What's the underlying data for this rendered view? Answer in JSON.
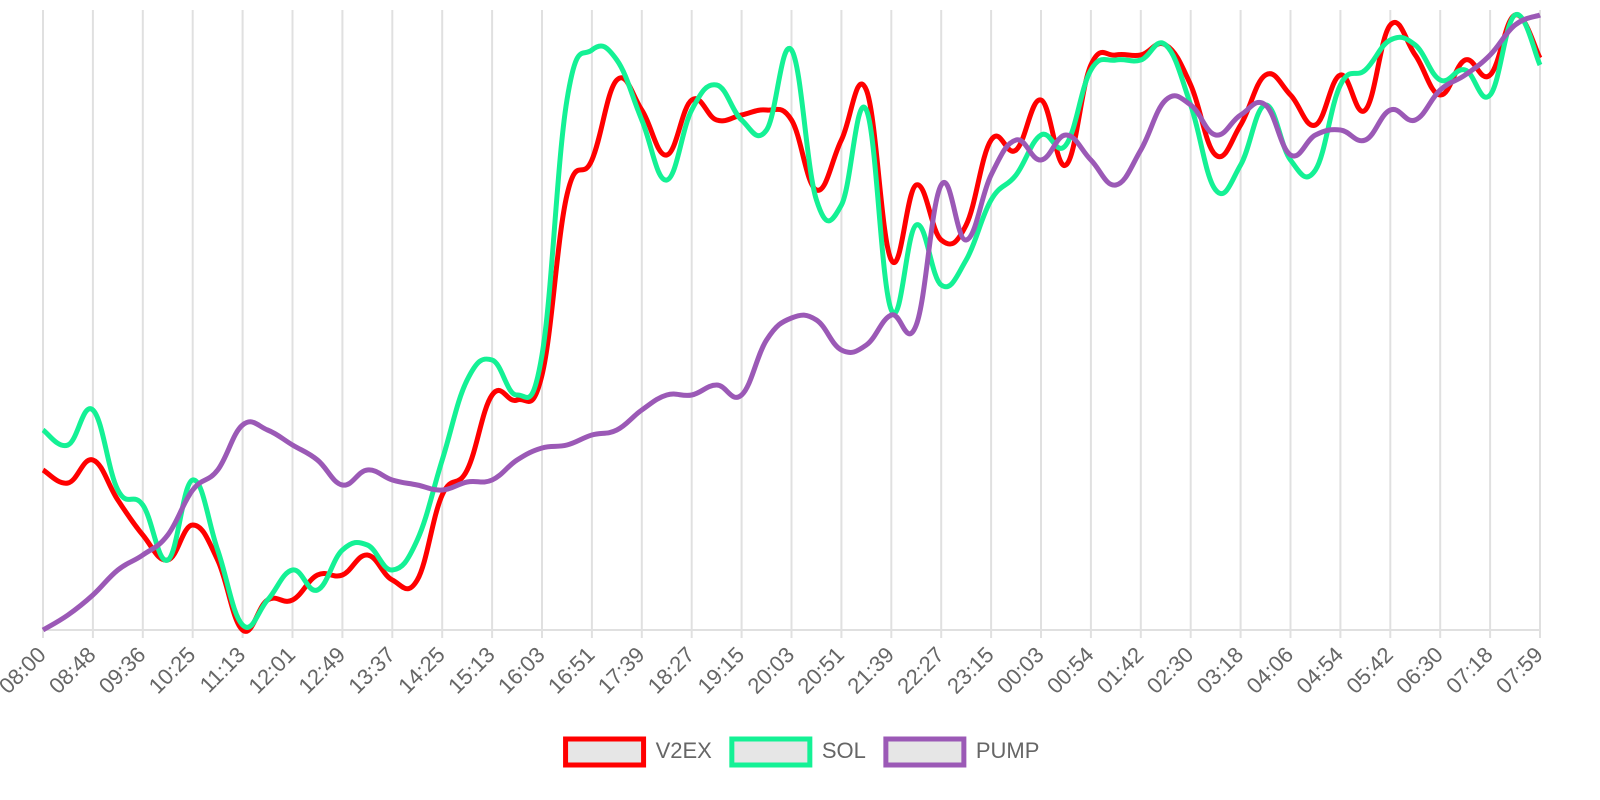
{
  "chart_data": {
    "type": "line",
    "categories": [
      "08:00",
      null,
      "08:48",
      null,
      "09:36",
      null,
      "10:25",
      null,
      "11:13",
      null,
      "12:01",
      null,
      "12:49",
      null,
      "13:37",
      null,
      "14:25",
      null,
      "15:13",
      null,
      "16:03",
      null,
      "16:51",
      null,
      "17:39",
      null,
      "18:27",
      null,
      "19:15",
      null,
      "20:03",
      null,
      "20:51",
      null,
      "21:39",
      null,
      "22:27",
      null,
      "23:15",
      null,
      "00:03",
      null,
      "00:54",
      null,
      "01:42",
      null,
      "02:30",
      null,
      "03:18",
      null,
      "04:06",
      null,
      "04:54",
      null,
      "05:42",
      null,
      "06:30",
      null,
      "07:18",
      null,
      "07:59"
    ],
    "series": [
      {
        "name": "V2EX",
        "color": "#ff0000",
        "values": [
          160,
          147,
          170,
          130,
          95,
          70,
          105,
          70,
          0,
          30,
          30,
          55,
          55,
          75,
          50,
          50,
          135,
          160,
          235,
          230,
          255,
          435,
          470,
          550,
          520,
          475,
          530,
          510,
          515,
          520,
          510,
          440,
          490,
          540,
          370,
          445,
          390,
          405,
          490,
          480,
          530,
          465,
          565,
          575,
          575,
          585,
          545,
          475,
          505,
          555,
          535,
          505,
          555,
          520,
          605,
          575,
          535,
          570,
          555,
          615,
          572
        ]
      },
      {
        "name": "SOL",
        "color": "#14f195",
        "values": [
          200,
          185,
          220,
          140,
          125,
          70,
          150,
          80,
          5,
          30,
          60,
          40,
          80,
          85,
          60,
          90,
          170,
          250,
          270,
          235,
          275,
          530,
          580,
          570,
          510,
          450,
          520,
          545,
          510,
          500,
          580,
          430,
          425,
          520,
          320,
          405,
          345,
          370,
          430,
          455,
          495,
          485,
          560,
          570,
          570,
          585,
          525,
          440,
          465,
          525,
          470,
          460,
          545,
          560,
          590,
          585,
          550,
          560,
          535,
          615,
          565
        ]
      },
      {
        "name": "PUMP",
        "color": "#9b59b6",
        "values": [
          0,
          15,
          35,
          60,
          75,
          95,
          140,
          160,
          205,
          200,
          185,
          170,
          145,
          160,
          150,
          145,
          140,
          148,
          150,
          170,
          182,
          185,
          195,
          200,
          220,
          235,
          235,
          245,
          235,
          290,
          312,
          310,
          280,
          285,
          315,
          305,
          445,
          390,
          455,
          490,
          470,
          495,
          470,
          445,
          480,
          530,
          525,
          495,
          515,
          525,
          475,
          495,
          500,
          490,
          520,
          510,
          540,
          555,
          575,
          605,
          615
        ]
      }
    ],
    "ylim": [
      0,
      620
    ],
    "grid": true,
    "legend": "bottom"
  }
}
